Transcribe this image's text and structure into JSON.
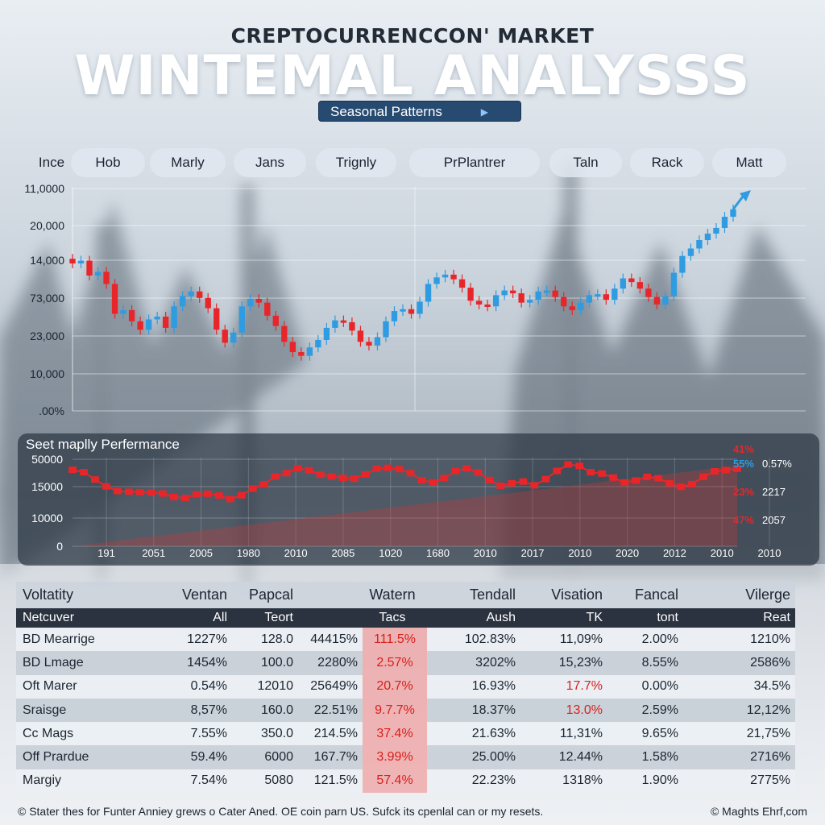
{
  "header": {
    "supertitle": "CREPTOCURRENCCON' MARKET",
    "title": "WINTEMAL ANALYSSS",
    "pattern_button": "Seasonal Patterns"
  },
  "pills": [
    "Ince",
    "Hob",
    "Marly",
    "Jans",
    "Trignly",
    "PrPlantrer",
    "Taln",
    "Rack",
    "Matt"
  ],
  "chart_data": [
    {
      "type": "line",
      "title": "",
      "y_tick_labels": [
        "11,0000",
        "20,000",
        "14,000",
        "73,000",
        "23,000",
        "10,000",
        ".00%"
      ],
      "series": [
        {
          "values": [
            15.8,
            16.1,
            14.5,
            14.9,
            13.6,
            10.4,
            10.8,
            9.6,
            8.7,
            9.8,
            10.1,
            8.9,
            11.2,
            12.3,
            12.8,
            12.1,
            11.0,
            8.7,
            7.3,
            8.4,
            11.2,
            12.0,
            11.6,
            10.2,
            9.1,
            7.4,
            6.3,
            5.9,
            6.8,
            7.6,
            8.9,
            9.7,
            9.5,
            8.6,
            7.4,
            7.0,
            7.9,
            9.6,
            10.7,
            10.9,
            10.4,
            11.7,
            13.6,
            14.3,
            14.6,
            14.1,
            13.2,
            11.8,
            11.4,
            11.2,
            12.4,
            12.9,
            12.6,
            11.6,
            11.9,
            12.8,
            12.9,
            12.2,
            11.2,
            10.8,
            11.6,
            12.4,
            12.5,
            11.9,
            13.1,
            14.2,
            13.8,
            13.1,
            12.2,
            11.4,
            12.3,
            14.8,
            16.6,
            17.4,
            18.3,
            19.0,
            19.6,
            20.8,
            21.6
          ]
        }
      ],
      "markers": [
        "red",
        "red"
      ]
    },
    {
      "type": "area",
      "title": "Seet maplly Perfermance",
      "y_tick_labels": [
        "50000",
        "15000",
        "10000",
        "0"
      ],
      "x_tick_labels": [
        "191",
        "2051",
        "2005",
        "1980",
        "2010",
        "2085",
        "1020",
        "1680",
        "2010",
        "2017",
        "2010",
        "2020",
        "2012",
        "2010",
        "2010"
      ],
      "series": [
        {
          "values": [
            34.5,
            33.4,
            30.1,
            27.0,
            24.9,
            24.6,
            24.4,
            24.3,
            23.8,
            22.2,
            21.8,
            23.4,
            23.7,
            22.9,
            21.3,
            23.0,
            26.0,
            28.0,
            31.5,
            33.0,
            35.2,
            34.3,
            32.3,
            31.5,
            30.9,
            30.5,
            32.4,
            35.0,
            35.4,
            34.8,
            33.0,
            29.8,
            28.8,
            30.8,
            34.0,
            35.2,
            33.3,
            29.9,
            27.3,
            28.4,
            29.2,
            27.5,
            30.3,
            34.0,
            36.9,
            36.3,
            33.4,
            32.8,
            31.0,
            28.8,
            29.7,
            31.3,
            30.7,
            28.4,
            26.8,
            28.0,
            31.3,
            33.8,
            34.4,
            35.0
          ]
        }
      ],
      "legend": [
        {
          "pct": "41%",
          "val": ""
        },
        {
          "pct": "55%",
          "val": "0.57%"
        },
        {
          "pct": "23%",
          "val": "2217"
        },
        {
          "pct": "47%",
          "val": "2057"
        }
      ]
    }
  ],
  "table": {
    "header1": [
      "Voltatity",
      "Ventan",
      "Papcal",
      "",
      "Watern",
      "Tendall",
      "Visation",
      "Fancal",
      "Vilerge"
    ],
    "header2": [
      "Netcuver",
      "All",
      "Teort",
      "",
      "Tacs",
      "Aush",
      "TK",
      "tont",
      "Reat"
    ],
    "rows": [
      [
        "BD Mearrige",
        "1227%",
        "128.0",
        "44415%",
        "111.5%",
        "102.83%",
        "11,09%",
        "2.00%",
        "1210%"
      ],
      [
        "BD Lmage",
        "1454%",
        "100.0",
        "2280%",
        "2.57%",
        "3202%",
        "15,23%",
        "8.55%",
        "2586%"
      ],
      [
        "Oft Marer",
        "0.54%",
        "12010",
        "25649%",
        "20.7%",
        "16.93%",
        "17.7%",
        "0.00%",
        "34.5%"
      ],
      [
        "Sraisge",
        "8,57%",
        "160.0",
        "22.51%",
        "9.7.7%",
        "18.37%",
        "13.0%",
        "2.59%",
        "12,12%"
      ],
      [
        "Cc Mags",
        "7.55%",
        "350.0",
        "214.5%",
        "37.4%",
        "21.63%",
        "11,31%",
        "9.65%",
        "21,75%"
      ],
      [
        "Off Prardue",
        "59.4%",
        "6000",
        "167.7%",
        "3.99%",
        "25.00%",
        "12.44%",
        "1.58%",
        "2716%"
      ],
      [
        "Margiy",
        "7.54%",
        "5080",
        "121.5%",
        "57.4%",
        "22.23%",
        "1318%",
        "1.90%",
        "2775%"
      ]
    ],
    "red_cells": [
      [
        2,
        6
      ],
      [
        3,
        6
      ]
    ]
  },
  "footer": {
    "note": "© Stater thes for Funter Anniey grews o Cater Aned. OE coin parn US. Sufck its cpenlal can or my resets.",
    "credit": "© Maghts Ehrf,com"
  },
  "colors": {
    "up": "#2f9be0",
    "down": "#e8262a",
    "panel": "#2b3340",
    "button": "#264a70"
  }
}
